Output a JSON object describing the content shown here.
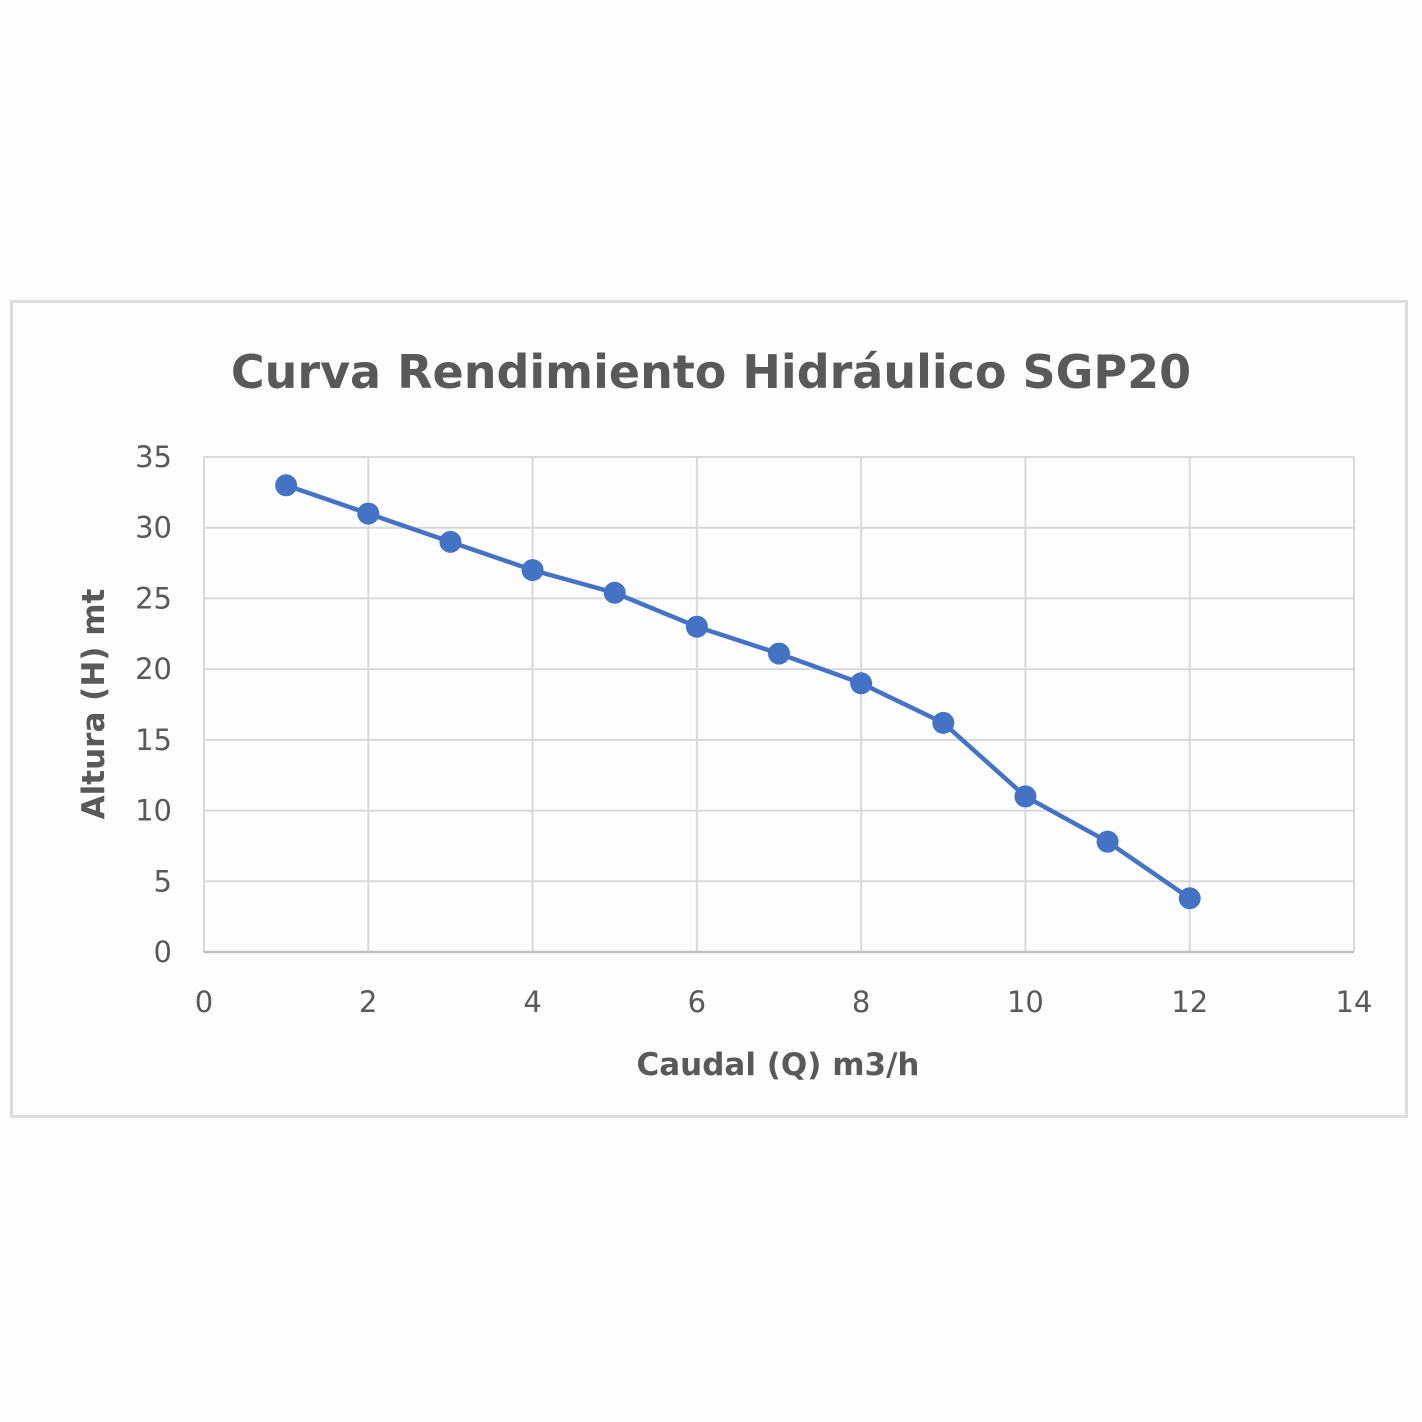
{
  "chart_data": {
    "type": "line",
    "title": "Curva Rendimiento Hidráulico SGP20",
    "xlabel": "Caudal (Q) m3/h",
    "ylabel": "Altura (H) mt",
    "xlim": [
      0,
      14
    ],
    "ylim": [
      0,
      35
    ],
    "x_ticks": [
      "0",
      "2",
      "4",
      "6",
      "8",
      "10",
      "12",
      "14"
    ],
    "y_ticks": [
      "0",
      "5",
      "10",
      "15",
      "20",
      "25",
      "30",
      "35"
    ],
    "grid": true,
    "legend": "none",
    "series": [
      {
        "color": "#4472c4",
        "marker": "circle",
        "points": [
          {
            "x": 1,
            "y": 33
          },
          {
            "x": 2,
            "y": 31
          },
          {
            "x": 3,
            "y": 29
          },
          {
            "x": 4,
            "y": 27
          },
          {
            "x": 5,
            "y": 25.4
          },
          {
            "x": 6,
            "y": 23
          },
          {
            "x": 7,
            "y": 21.1
          },
          {
            "x": 8,
            "y": 19
          },
          {
            "x": 9,
            "y": 16.2
          },
          {
            "x": 10,
            "y": 11
          },
          {
            "x": 11,
            "y": 7.8
          },
          {
            "x": 12,
            "y": 3.8
          }
        ]
      }
    ]
  }
}
